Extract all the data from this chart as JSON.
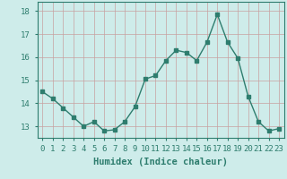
{
  "x": [
    0,
    1,
    2,
    3,
    4,
    5,
    6,
    7,
    8,
    9,
    10,
    11,
    12,
    13,
    14,
    15,
    16,
    17,
    18,
    19,
    20,
    21,
    22,
    23
  ],
  "y": [
    14.5,
    14.2,
    13.8,
    13.4,
    13.0,
    13.2,
    12.8,
    12.85,
    13.2,
    13.85,
    15.05,
    15.2,
    15.85,
    16.3,
    16.2,
    15.85,
    16.65,
    17.85,
    16.65,
    15.95,
    14.3,
    13.2,
    12.8,
    12.9
  ],
  "line_color": "#2e7d6e",
  "marker": "s",
  "marker_size": 2.5,
  "line_width": 1.0,
  "bg_color": "#ceecea",
  "grid_color_v": "#c8a0a0",
  "grid_color_h": "#c8a0a0",
  "xlabel": "Humidex (Indice chaleur)",
  "xlabel_fontsize": 7.5,
  "tick_fontsize": 6.5,
  "ylim": [
    12.5,
    18.4
  ],
  "yticks": [
    13,
    14,
    15,
    16,
    17,
    18
  ],
  "xticks": [
    0,
    1,
    2,
    3,
    4,
    5,
    6,
    7,
    8,
    9,
    10,
    11,
    12,
    13,
    14,
    15,
    16,
    17,
    18,
    19,
    20,
    21,
    22,
    23
  ]
}
